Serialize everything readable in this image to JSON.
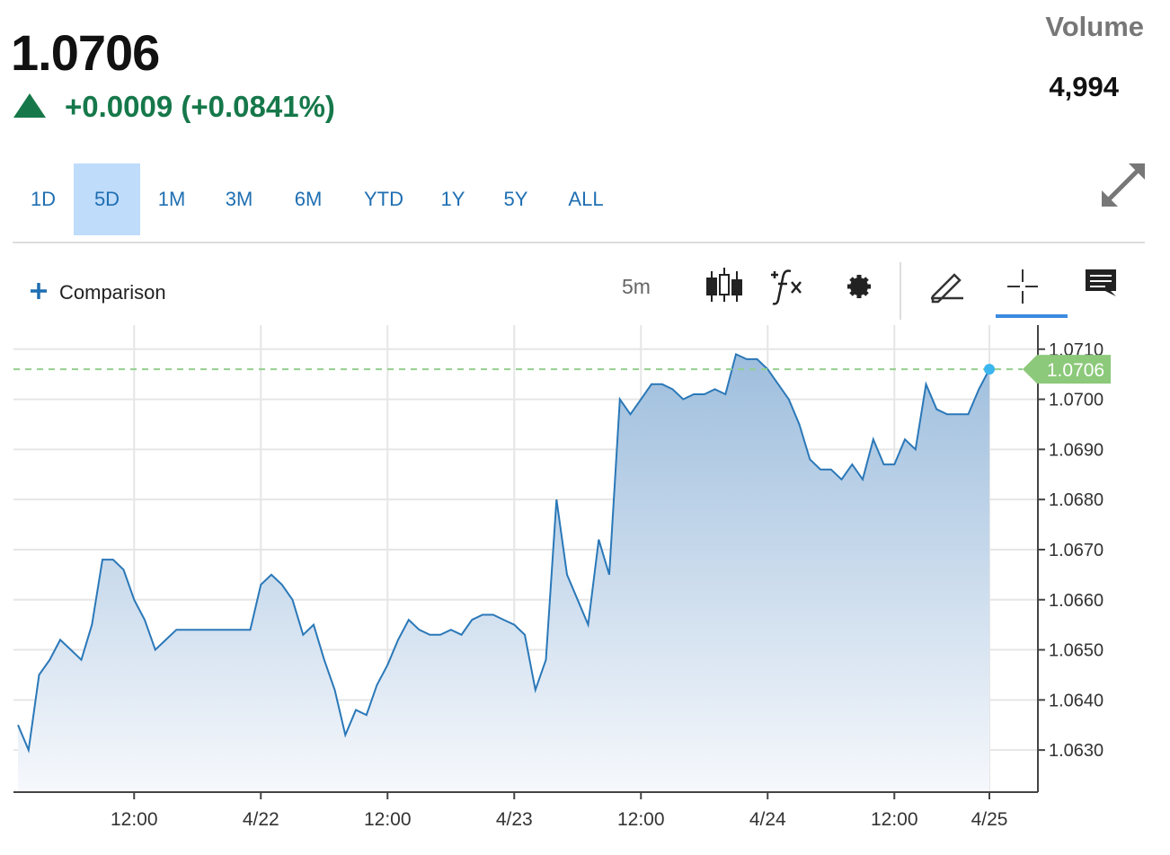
{
  "header": {
    "price": "1.0706",
    "change": "+0.0009 (+0.0841%)",
    "volume_label": "Volume",
    "volume": "4,994"
  },
  "range_buttons": [
    "1D",
    "5D",
    "1M",
    "3M",
    "6M",
    "YTD",
    "1Y",
    "5Y",
    "ALL"
  ],
  "selected_range": "5D",
  "toolbar": {
    "comparison": "Comparison",
    "interval": "5m"
  },
  "chart_data": {
    "type": "area",
    "categories": [
      null,
      null,
      null,
      null,
      null,
      null,
      null,
      null,
      null,
      null,
      null,
      "12:00",
      null,
      null,
      null,
      null,
      null,
      null,
      null,
      null,
      null,
      null,
      null,
      "4/22",
      null,
      null,
      null,
      null,
      null,
      null,
      null,
      null,
      null,
      null,
      null,
      "12:00",
      null,
      null,
      null,
      null,
      null,
      null,
      null,
      null,
      null,
      null,
      null,
      "4/23",
      null,
      null,
      null,
      null,
      null,
      null,
      null,
      null,
      null,
      null,
      null,
      "12:00",
      null,
      null,
      null,
      null,
      null,
      null,
      null,
      null,
      null,
      null,
      null,
      "4/24",
      null,
      null,
      null,
      null,
      null,
      null,
      null,
      null,
      null,
      null,
      null,
      "12:00",
      null,
      null,
      null,
      null,
      null,
      null,
      null,
      null,
      "4/25"
    ],
    "values": [
      1.0635,
      1.063,
      1.0645,
      1.0648,
      1.0652,
      1.065,
      1.0648,
      1.0655,
      1.0668,
      1.0668,
      1.0666,
      1.066,
      1.0656,
      1.065,
      1.0652,
      1.0654,
      1.0654,
      1.0654,
      1.0654,
      1.0654,
      1.0654,
      1.0654,
      1.0654,
      1.0663,
      1.0665,
      1.0663,
      1.066,
      1.0653,
      1.0655,
      1.0648,
      1.0642,
      1.0633,
      1.0638,
      1.0637,
      1.0643,
      1.0647,
      1.0652,
      1.0656,
      1.0654,
      1.0653,
      1.0653,
      1.0654,
      1.0653,
      1.0656,
      1.0657,
      1.0657,
      1.0656,
      1.0655,
      1.0653,
      1.0642,
      1.0648,
      1.068,
      1.0665,
      1.066,
      1.0655,
      1.0672,
      1.0665,
      1.07,
      1.0697,
      1.07,
      1.0703,
      1.0703,
      1.0702,
      1.07,
      1.0701,
      1.0701,
      1.0702,
      1.0701,
      1.0709,
      1.0708,
      1.0708,
      1.0706,
      1.0703,
      1.07,
      1.0695,
      1.0688,
      1.0686,
      1.0686,
      1.0684,
      1.0687,
      1.0684,
      1.0692,
      1.0687,
      1.0687,
      1.0692,
      1.069,
      1.0703,
      1.0698,
      1.0697,
      1.0697,
      1.0697,
      1.0702,
      1.0706
    ],
    "color": "#2a78b8",
    "last_value": 1.0706,
    "ylim": [
      1.06216,
      1.07148
    ],
    "yticks": [
      {
        "value": 1.071,
        "label": "1.0710"
      },
      {
        "value": 1.07,
        "label": "1.0700"
      },
      {
        "value": 1.069,
        "label": "1.0690"
      },
      {
        "value": 1.068,
        "label": "1.0680"
      },
      {
        "value": 1.067,
        "label": "1.0670"
      },
      {
        "value": 1.066,
        "label": "1.0660"
      },
      {
        "value": 1.065,
        "label": "1.0650"
      },
      {
        "value": 1.064,
        "label": "1.0640"
      },
      {
        "value": 1.063,
        "label": "1.0630"
      }
    ],
    "grid": true
  }
}
